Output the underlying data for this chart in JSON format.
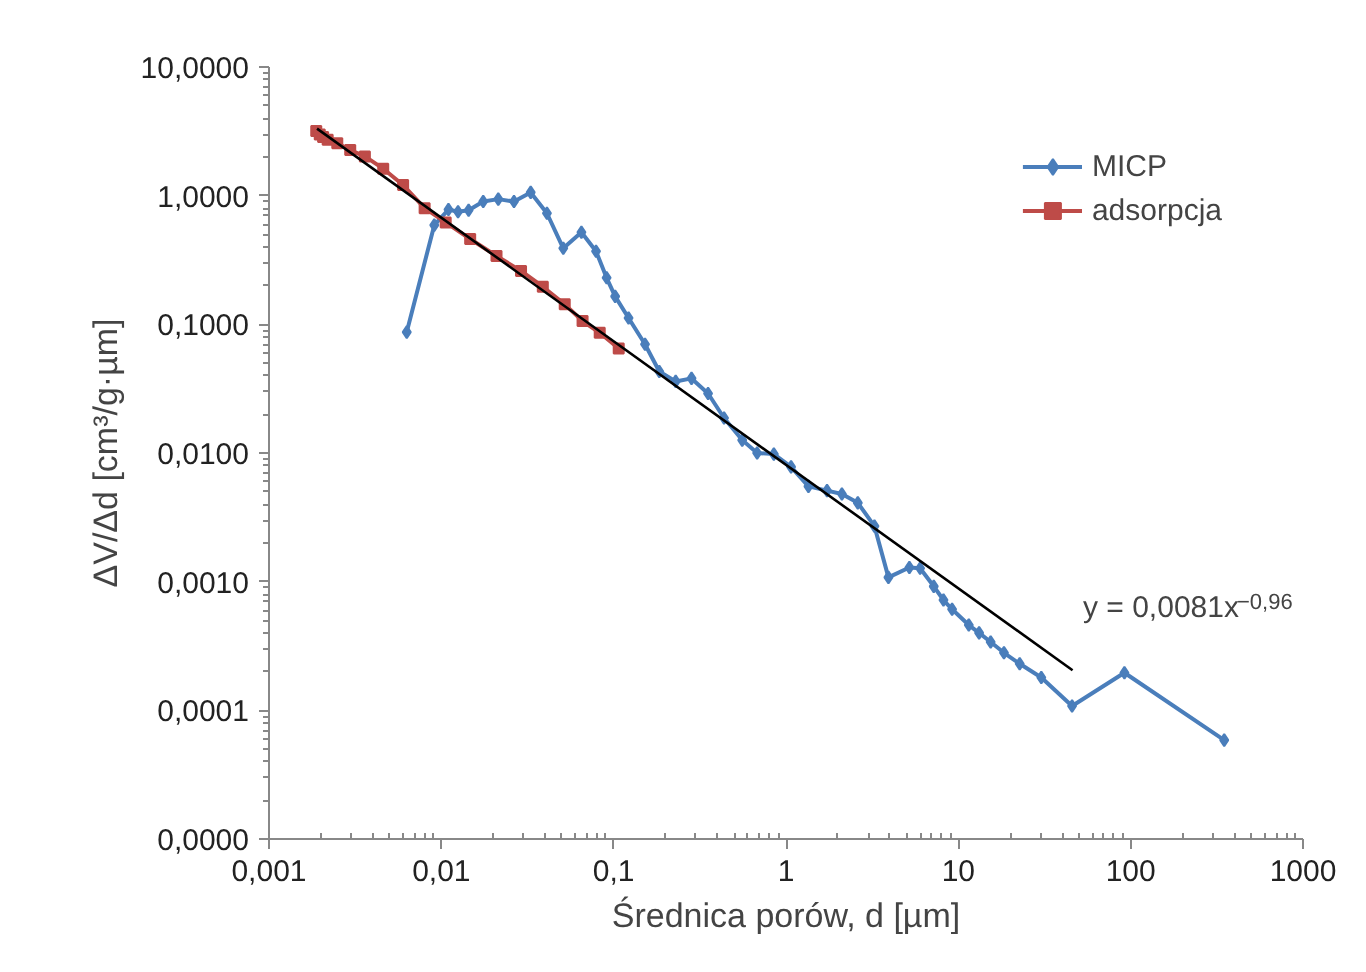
{
  "chart_data": {
    "type": "line",
    "xlabel": "Średnica porów, d [µm]",
    "ylabel": "ΔV/Δd [cm³/g·µm]",
    "log": "xy",
    "grid": false,
    "legend": "top right",
    "xlim": [
      0.001,
      1000
    ],
    "ylim": [
      1e-05,
      10
    ],
    "xticks": [
      {
        "value": 0.001,
        "label": "0,001"
      },
      {
        "value": 0.01,
        "label": "0,01"
      },
      {
        "value": 0.1,
        "label": "0,1"
      },
      1,
      10,
      100,
      1000
    ],
    "yticks": [
      {
        "value": 1e-05,
        "label": "0,0000"
      },
      {
        "value": 0.0001,
        "label": "0,0001"
      },
      {
        "value": 0.001,
        "label": "0,0010"
      },
      {
        "value": 0.01,
        "label": "0,0100"
      },
      {
        "value": 0.1,
        "label": "0,1000"
      },
      {
        "value": 1,
        "label": "1,0000"
      },
      {
        "value": 10,
        "label": "10,0000"
      }
    ],
    "series": [
      {
        "name": "MICP",
        "color": "#4a7ebb",
        "marker": "diamond",
        "x": [
          0.0063,
          0.0091,
          0.011,
          0.0125,
          0.0144,
          0.0175,
          0.0214,
          0.0264,
          0.033,
          0.041,
          0.051,
          0.065,
          0.079,
          0.091,
          0.102,
          0.122,
          0.152,
          0.184,
          0.229,
          0.283,
          0.353,
          0.437,
          0.557,
          0.68,
          0.85,
          1.07,
          1.35,
          1.73,
          2.11,
          2.61,
          3.26,
          3.93,
          5.2,
          6.0,
          7.2,
          8.2,
          9.2,
          11.5,
          13.2,
          15.4,
          18.4,
          22.7,
          30.3,
          45.7,
          92,
          349
        ],
        "values": [
          0.087,
          0.59,
          0.78,
          0.75,
          0.77,
          0.9,
          0.94,
          0.9,
          1.06,
          0.73,
          0.39,
          0.52,
          0.37,
          0.23,
          0.165,
          0.112,
          0.07,
          0.043,
          0.036,
          0.038,
          0.029,
          0.0187,
          0.0126,
          0.01,
          0.0098,
          0.0078,
          0.0055,
          0.0051,
          0.0048,
          0.0041,
          0.0027,
          0.00108,
          0.00129,
          0.00127,
          0.00092,
          0.00072,
          0.00061,
          0.00046,
          0.0004,
          0.00034,
          0.00028,
          0.00023,
          0.00018,
          0.000108,
          0.000196,
          5.87e-05
        ]
      },
      {
        "name": "adsorpcja",
        "color": "#be4b48",
        "marker": "square",
        "x": [
          0.00188,
          0.00197,
          0.00206,
          0.00219,
          0.00249,
          0.00296,
          0.0036,
          0.0046,
          0.006,
          0.008,
          0.0106,
          0.0147,
          0.0209,
          0.029,
          0.0388,
          0.052,
          0.066,
          0.083,
          0.107
        ],
        "values": [
          3.18,
          2.99,
          2.86,
          2.72,
          2.56,
          2.26,
          2.02,
          1.62,
          1.21,
          0.8,
          0.62,
          0.46,
          0.34,
          0.26,
          0.196,
          0.143,
          0.106,
          0.086,
          0.065
        ]
      },
      {
        "color": "#000000",
        "marker": "none",
        "x": [
          0.0019,
          46
        ],
        "values": [
          3.32,
          0.000205
        ]
      }
    ],
    "annotations": [
      "y = 0,0081x$^{−0,96}$"
    ]
  }
}
